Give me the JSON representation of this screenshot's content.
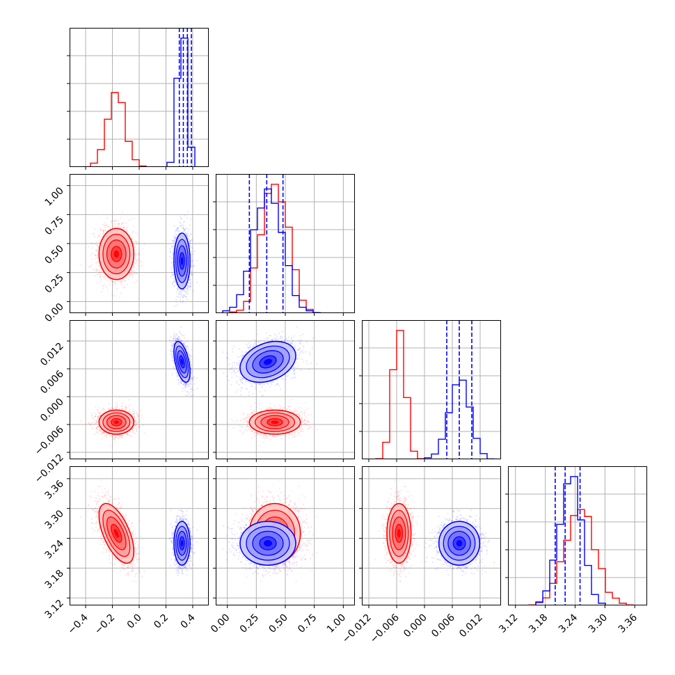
{
  "colors": {
    "series_a": "#ff0000",
    "series_b": "#0000ff",
    "grid": "#b0b0b0"
  },
  "chart_data": {
    "type": "corner",
    "grid": true,
    "series": [
      {
        "name": "",
        "color": "#ff0000",
        "means": [
          -0.17,
          0.41,
          -0.0055,
          3.25
        ],
        "stds": [
          0.065,
          0.11,
          0.0013,
          0.03
        ],
        "corr": [
          [
            1,
            0,
            0,
            -0.6
          ],
          [
            0,
            1,
            0,
            0
          ],
          [
            0,
            0,
            1,
            0
          ],
          [
            -0.6,
            0,
            0,
            1
          ]
        ]
      },
      {
        "name": "",
        "color": "#0000ff",
        "means": [
          0.32,
          0.35,
          0.0075,
          3.23
        ],
        "stds": [
          0.03,
          0.12,
          0.0022,
          0.022
        ],
        "corr": [
          [
            1,
            0,
            -0.5,
            0
          ],
          [
            0,
            1,
            0.3,
            0
          ],
          [
            -0.5,
            0.3,
            1,
            0
          ],
          [
            0,
            0,
            0,
            1
          ]
        ]
      }
    ],
    "quantile_lines": [
      [
        0.3,
        0.33,
        0.36,
        0.39
      ],
      [
        0.19,
        0.34,
        0.48
      ],
      [
        0.0048,
        0.0075,
        0.0102
      ],
      [
        3.2,
        3.22,
        3.25
      ]
    ],
    "parameters": [
      {
        "range": [
          -0.52,
          0.52
        ],
        "ticks": [
          -0.4,
          -0.2,
          0.0,
          0.2,
          0.4
        ],
        "tick_labels": [
          "−0.4",
          "−0.2",
          "0.0",
          "0.2",
          "0.4"
        ]
      },
      {
        "range": [
          -0.1,
          1.1
        ],
        "ticks": [
          0.0,
          0.25,
          0.5,
          0.75,
          1.0
        ],
        "tick_labels": [
          "0.00",
          "0.25",
          "0.50",
          "0.75",
          "1.00"
        ]
      },
      {
        "range": [
          -0.0135,
          0.0165
        ],
        "ticks": [
          -0.012,
          -0.006,
          0.0,
          0.006,
          0.012
        ],
        "tick_labels": [
          "−0.012",
          "−0.006",
          "0.000",
          "0.006",
          "0.012"
        ]
      },
      {
        "range": [
          3.105,
          3.385
        ],
        "ticks": [
          3.12,
          3.18,
          3.24,
          3.3,
          3.36
        ],
        "tick_labels": [
          "3.12",
          "3.18",
          "3.24",
          "3.30",
          "3.36"
        ]
      }
    ]
  }
}
